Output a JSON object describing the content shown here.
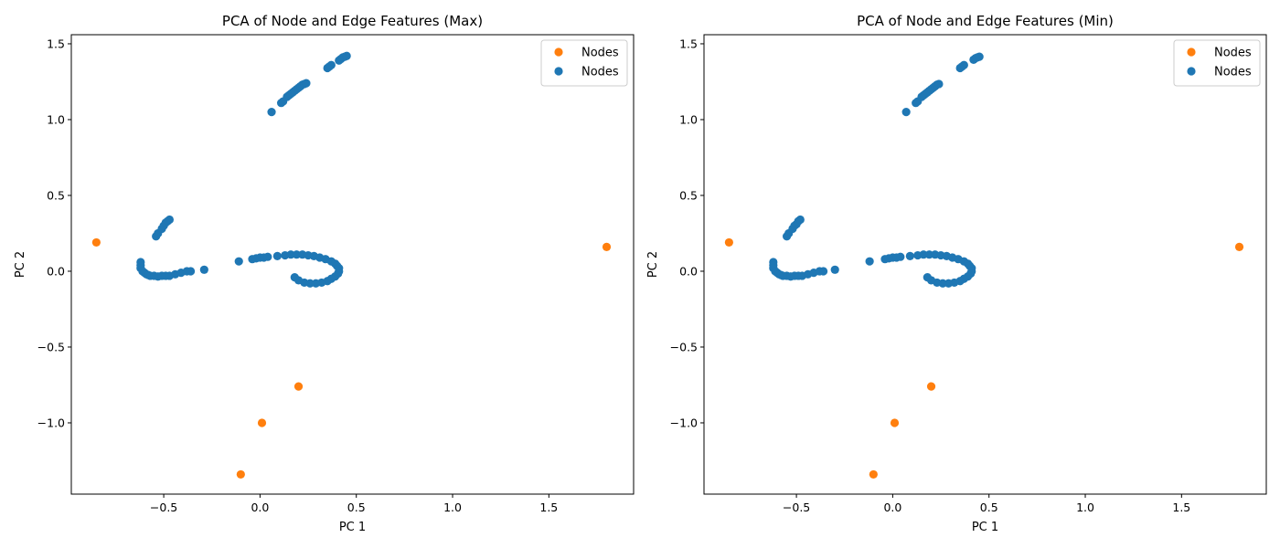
{
  "chart_data": [
    {
      "type": "scatter",
      "title": "PCA of Node and Edge Features (Max)",
      "xlabel": "PC 1",
      "ylabel": "PC 2",
      "xlim": [
        -0.98,
        1.94
      ],
      "ylim": [
        -1.47,
        1.56
      ],
      "xticks": [
        -0.5,
        0.0,
        0.5,
        1.0,
        1.5
      ],
      "xtick_labels": [
        "−0.5",
        "0.0",
        "0.5",
        "1.0",
        "1.5"
      ],
      "yticks": [
        -1.0,
        -0.5,
        0.0,
        0.5,
        1.0,
        1.5
      ],
      "ytick_labels": [
        "−1.0",
        "−0.5",
        "0.0",
        "0.5",
        "1.0",
        "1.5"
      ],
      "legend_position": "top-right",
      "grid": false,
      "series": [
        {
          "name": "Nodes",
          "color": "#ff7f0e",
          "points": [
            [
              -0.85,
              0.19
            ],
            [
              1.8,
              0.16
            ],
            [
              0.2,
              -0.76
            ],
            [
              0.01,
              -1.0
            ],
            [
              -0.1,
              -1.34
            ]
          ]
        },
        {
          "name": "Nodes",
          "color": "#1f77b4",
          "points": [
            [
              0.06,
              1.05
            ],
            [
              0.11,
              1.11
            ],
            [
              0.12,
              1.12
            ],
            [
              0.14,
              1.15
            ],
            [
              0.15,
              1.16
            ],
            [
              0.16,
              1.17
            ],
            [
              0.17,
              1.18
            ],
            [
              0.18,
              1.19
            ],
            [
              0.19,
              1.2
            ],
            [
              0.2,
              1.21
            ],
            [
              0.21,
              1.22
            ],
            [
              0.22,
              1.23
            ],
            [
              0.23,
              1.235
            ],
            [
              0.24,
              1.24
            ],
            [
              0.35,
              1.34
            ],
            [
              0.36,
              1.35
            ],
            [
              0.37,
              1.36
            ],
            [
              0.41,
              1.39
            ],
            [
              0.42,
              1.4
            ],
            [
              0.43,
              1.41
            ],
            [
              0.44,
              1.415
            ],
            [
              0.45,
              1.42
            ],
            [
              -0.54,
              0.23
            ],
            [
              -0.53,
              0.25
            ],
            [
              -0.51,
              0.28
            ],
            [
              -0.5,
              0.3
            ],
            [
              -0.49,
              0.32
            ],
            [
              -0.48,
              0.33
            ],
            [
              -0.47,
              0.34
            ],
            [
              -0.62,
              0.06
            ],
            [
              -0.62,
              0.04
            ],
            [
              -0.62,
              0.02
            ],
            [
              -0.61,
              0.0
            ],
            [
              -0.6,
              -0.01
            ],
            [
              -0.59,
              -0.02
            ],
            [
              -0.58,
              -0.025
            ],
            [
              -0.57,
              -0.03
            ],
            [
              -0.55,
              -0.03
            ],
            [
              -0.53,
              -0.035
            ],
            [
              -0.51,
              -0.03
            ],
            [
              -0.49,
              -0.03
            ],
            [
              -0.47,
              -0.03
            ],
            [
              -0.44,
              -0.02
            ],
            [
              -0.41,
              -0.01
            ],
            [
              -0.38,
              0.0
            ],
            [
              -0.36,
              0.0
            ],
            [
              -0.29,
              0.01
            ],
            [
              -0.11,
              0.065
            ],
            [
              -0.04,
              0.08
            ],
            [
              -0.02,
              0.085
            ],
            [
              0.0,
              0.09
            ],
            [
              0.02,
              0.09
            ],
            [
              0.04,
              0.095
            ],
            [
              0.09,
              0.1
            ],
            [
              0.13,
              0.105
            ],
            [
              0.16,
              0.11
            ],
            [
              0.19,
              0.11
            ],
            [
              0.22,
              0.11
            ],
            [
              0.25,
              0.105
            ],
            [
              0.28,
              0.1
            ],
            [
              0.31,
              0.09
            ],
            [
              0.34,
              0.08
            ],
            [
              0.37,
              0.065
            ],
            [
              0.39,
              0.05
            ],
            [
              0.4,
              0.035
            ],
            [
              0.41,
              0.02
            ],
            [
              0.41,
              0.0
            ],
            [
              0.405,
              -0.015
            ],
            [
              0.39,
              -0.035
            ],
            [
              0.37,
              -0.05
            ],
            [
              0.35,
              -0.065
            ],
            [
              0.32,
              -0.075
            ],
            [
              0.29,
              -0.08
            ],
            [
              0.26,
              -0.08
            ],
            [
              0.23,
              -0.075
            ],
            [
              0.2,
              -0.06
            ],
            [
              0.18,
              -0.04
            ]
          ]
        }
      ]
    },
    {
      "type": "scatter",
      "title": "PCA of Node and Edge Features (Min)",
      "xlabel": "PC 1",
      "ylabel": "PC 2",
      "xlim": [
        -0.98,
        1.94
      ],
      "ylim": [
        -1.47,
        1.56
      ],
      "xticks": [
        -0.5,
        0.0,
        0.5,
        1.0,
        1.5
      ],
      "xtick_labels": [
        "−0.5",
        "0.0",
        "0.5",
        "1.0",
        "1.5"
      ],
      "yticks": [
        -1.0,
        -0.5,
        0.0,
        0.5,
        1.0,
        1.5
      ],
      "ytick_labels": [
        "−1.0",
        "−0.5",
        "0.0",
        "0.5",
        "1.0",
        "1.5"
      ],
      "legend_position": "top-right",
      "grid": false,
      "series": [
        {
          "name": "Nodes",
          "color": "#ff7f0e",
          "points": [
            [
              -0.85,
              0.19
            ],
            [
              1.8,
              0.16
            ],
            [
              0.2,
              -0.76
            ],
            [
              0.01,
              -1.0
            ],
            [
              -0.1,
              -1.34
            ]
          ]
        },
        {
          "name": "Nodes",
          "color": "#1f77b4",
          "points": [
            [
              0.07,
              1.05
            ],
            [
              0.12,
              1.11
            ],
            [
              0.13,
              1.12
            ],
            [
              0.15,
              1.15
            ],
            [
              0.16,
              1.16
            ],
            [
              0.17,
              1.17
            ],
            [
              0.18,
              1.18
            ],
            [
              0.19,
              1.19
            ],
            [
              0.2,
              1.2
            ],
            [
              0.21,
              1.21
            ],
            [
              0.22,
              1.22
            ],
            [
              0.23,
              1.23
            ],
            [
              0.24,
              1.235
            ],
            [
              0.35,
              1.34
            ],
            [
              0.36,
              1.35
            ],
            [
              0.37,
              1.36
            ],
            [
              0.42,
              1.395
            ],
            [
              0.43,
              1.405
            ],
            [
              0.44,
              1.41
            ],
            [
              0.45,
              1.415
            ],
            [
              -0.55,
              0.23
            ],
            [
              -0.54,
              0.25
            ],
            [
              -0.52,
              0.28
            ],
            [
              -0.51,
              0.3
            ],
            [
              -0.5,
              0.31
            ],
            [
              -0.49,
              0.33
            ],
            [
              -0.48,
              0.34
            ],
            [
              -0.62,
              0.06
            ],
            [
              -0.62,
              0.04
            ],
            [
              -0.62,
              0.02
            ],
            [
              -0.61,
              0.0
            ],
            [
              -0.6,
              -0.01
            ],
            [
              -0.59,
              -0.02
            ],
            [
              -0.58,
              -0.025
            ],
            [
              -0.57,
              -0.03
            ],
            [
              -0.55,
              -0.03
            ],
            [
              -0.53,
              -0.035
            ],
            [
              -0.51,
              -0.03
            ],
            [
              -0.49,
              -0.03
            ],
            [
              -0.47,
              -0.03
            ],
            [
              -0.44,
              -0.02
            ],
            [
              -0.41,
              -0.01
            ],
            [
              -0.38,
              0.0
            ],
            [
              -0.36,
              0.0
            ],
            [
              -0.3,
              0.01
            ],
            [
              -0.12,
              0.065
            ],
            [
              -0.04,
              0.08
            ],
            [
              -0.02,
              0.085
            ],
            [
              0.0,
              0.09
            ],
            [
              0.02,
              0.09
            ],
            [
              0.04,
              0.095
            ],
            [
              0.09,
              0.1
            ],
            [
              0.13,
              0.105
            ],
            [
              0.16,
              0.11
            ],
            [
              0.19,
              0.11
            ],
            [
              0.22,
              0.11
            ],
            [
              0.25,
              0.105
            ],
            [
              0.28,
              0.1
            ],
            [
              0.31,
              0.09
            ],
            [
              0.34,
              0.08
            ],
            [
              0.37,
              0.065
            ],
            [
              0.39,
              0.05
            ],
            [
              0.4,
              0.035
            ],
            [
              0.41,
              0.02
            ],
            [
              0.41,
              0.0
            ],
            [
              0.405,
              -0.015
            ],
            [
              0.39,
              -0.035
            ],
            [
              0.37,
              -0.05
            ],
            [
              0.35,
              -0.065
            ],
            [
              0.32,
              -0.075
            ],
            [
              0.29,
              -0.08
            ],
            [
              0.26,
              -0.08
            ],
            [
              0.23,
              -0.075
            ],
            [
              0.2,
              -0.06
            ],
            [
              0.18,
              -0.04
            ]
          ]
        }
      ]
    }
  ]
}
